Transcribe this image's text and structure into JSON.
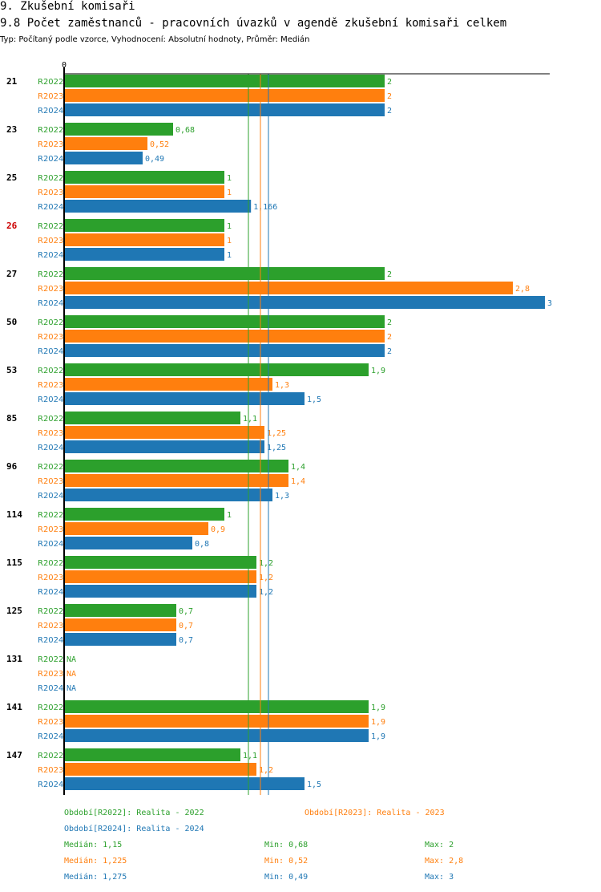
{
  "section_title": "9. Zkušební komisaři",
  "chart_title": "9.8 Počet zaměstnanců - pracovních úvazků v agendě zkušební komisaři celkem",
  "subtitle": "Typ: Počítaný podle vzorce, Vyhodnocení: Absolutní hodnoty, Průměr: Medián",
  "colors": {
    "R2022": "#2ca02c",
    "R2023": "#ff7f0e",
    "R2024": "#1f77b4",
    "highlight": "#cc0000"
  },
  "chart_data": {
    "type": "bar",
    "orientation": "horizontal",
    "axis_zero_label": "0",
    "xlim": [
      0,
      3
    ],
    "series_names": [
      "R2022",
      "R2023",
      "R2024"
    ],
    "highlight_category": "26",
    "categories": [
      {
        "label": "21",
        "values": [
          2,
          2,
          2
        ],
        "labels": [
          "2",
          "2",
          "2"
        ]
      },
      {
        "label": "23",
        "values": [
          0.68,
          0.52,
          0.49
        ],
        "labels": [
          "0,68",
          "0,52",
          "0,49"
        ]
      },
      {
        "label": "25",
        "values": [
          1,
          1,
          1.166
        ],
        "labels": [
          "1",
          "1",
          "1,166"
        ]
      },
      {
        "label": "26",
        "values": [
          1,
          1,
          1
        ],
        "labels": [
          "1",
          "1",
          "1"
        ]
      },
      {
        "label": "27",
        "values": [
          2,
          2.8,
          3
        ],
        "labels": [
          "2",
          "2,8",
          "3"
        ]
      },
      {
        "label": "50",
        "values": [
          2,
          2,
          2
        ],
        "labels": [
          "2",
          "2",
          "2"
        ]
      },
      {
        "label": "53",
        "values": [
          1.9,
          1.3,
          1.5
        ],
        "labels": [
          "1,9",
          "1,3",
          "1,5"
        ]
      },
      {
        "label": "85",
        "values": [
          1.1,
          1.25,
          1.25
        ],
        "labels": [
          "1,1",
          "1,25",
          "1,25"
        ]
      },
      {
        "label": "96",
        "values": [
          1.4,
          1.4,
          1.3
        ],
        "labels": [
          "1,4",
          "1,4",
          "1,3"
        ]
      },
      {
        "label": "114",
        "values": [
          1,
          0.9,
          0.8
        ],
        "labels": [
          "1",
          "0,9",
          "0,8"
        ]
      },
      {
        "label": "115",
        "values": [
          1.2,
          1.2,
          1.2
        ],
        "labels": [
          "1,2",
          "1,2",
          "1,2"
        ]
      },
      {
        "label": "125",
        "values": [
          0.7,
          0.7,
          0.7
        ],
        "labels": [
          "0,7",
          "0,7",
          "0,7"
        ]
      },
      {
        "label": "131",
        "values": [
          null,
          null,
          null
        ],
        "labels": [
          "NA",
          "NA",
          "NA"
        ]
      },
      {
        "label": "141",
        "values": [
          1.9,
          1.9,
          1.9
        ],
        "labels": [
          "1,9",
          "1,9",
          "1,9"
        ]
      },
      {
        "label": "147",
        "values": [
          1.1,
          1.2,
          1.5
        ],
        "labels": [
          "1,1",
          "1,2",
          "1,5"
        ]
      }
    ],
    "median_lines": [
      1.15,
      1.225,
      1.275
    ]
  },
  "legend": {
    "r2022": "Období[R2022]: Realita - 2022",
    "r2023": "Období[R2023]: Realita - 2023",
    "r2024": "Období[R2024]: Realita - 2024"
  },
  "stats": [
    {
      "median": "Medián: 1,15",
      "min": "Min: 0,68",
      "max": "Max: 2"
    },
    {
      "median": "Medián: 1,225",
      "min": "Min: 0,52",
      "max": "Max: 2,8"
    },
    {
      "median": "Medián: 1,275",
      "min": "Min: 0,49",
      "max": "Max: 3"
    }
  ]
}
